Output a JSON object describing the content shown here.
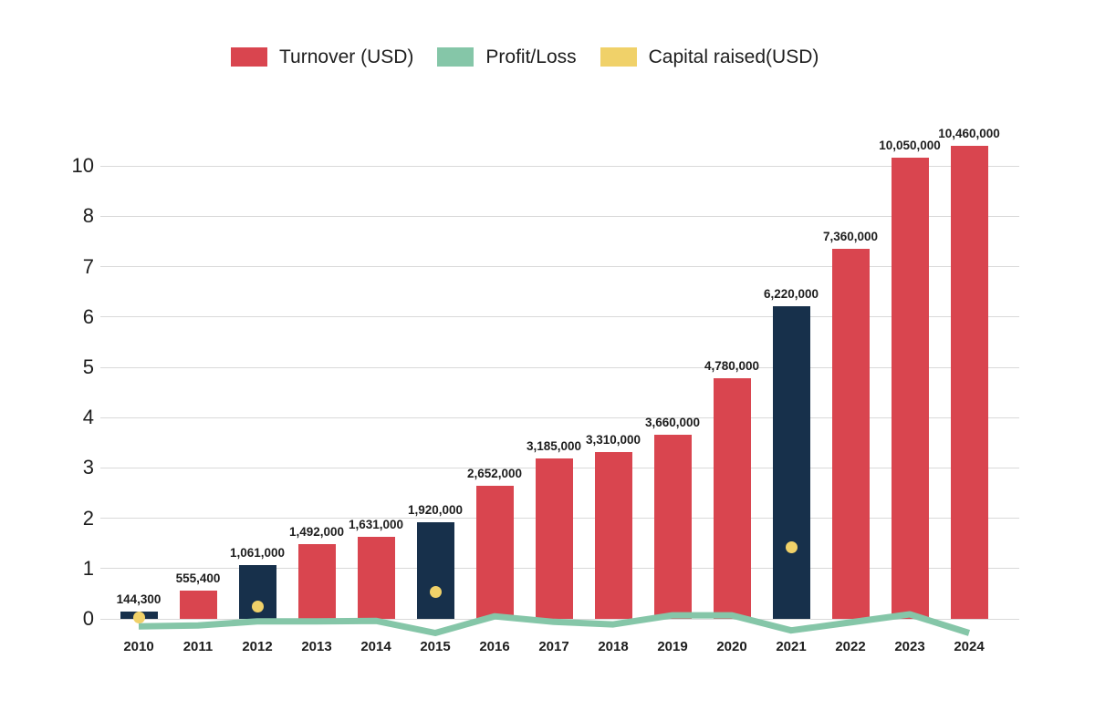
{
  "legend": {
    "items": [
      {
        "label": "Turnover (USD)",
        "color_key": "turnover"
      },
      {
        "label": "Profit/Loss",
        "color_key": "profit_loss"
      },
      {
        "label": "Capital raised(USD)",
        "color_key": "capital"
      }
    ]
  },
  "colors": {
    "turnover": "#D9454F",
    "highlight": "#17304B",
    "profit_loss": "#85C6A8",
    "capital": "#F0D169",
    "gridline": "#D9D9D9",
    "text": "#1D1D1D",
    "background": "#FFFFFF"
  },
  "chart_data": {
    "type": "bar",
    "title": "",
    "xlabel": "",
    "ylabel": "",
    "grid": true,
    "legend_position": "top",
    "categories": [
      "2010",
      "2011",
      "2012",
      "2013",
      "2014",
      "2015",
      "2016",
      "2017",
      "2018",
      "2019",
      "2020",
      "2021",
      "2022",
      "2023",
      "2024"
    ],
    "yticks": [
      "0",
      "1",
      "2",
      "3",
      "4",
      "5",
      "6",
      "7",
      "8",
      "10"
    ],
    "yaxis_note": "gridlines equally spaced; top line labeled 10 with 9 skipped; scale in millions USD",
    "series": [
      {
        "name": "Turnover (USD)",
        "type": "bar",
        "values": [
          144300,
          555400,
          1061000,
          1492000,
          1631000,
          1920000,
          2652000,
          3185000,
          3310000,
          3660000,
          4780000,
          6220000,
          7360000,
          10050000,
          10460000
        ],
        "labels": [
          "144,300",
          "555,400",
          "1,061,000",
          "1,492,000",
          "1,631,000",
          "1,920,000",
          "2,652,000",
          "3,185,000",
          "3,310,000",
          "3,660,000",
          "4,780,000",
          "6,220,000",
          "7,360,000",
          "10,050,000",
          "10,460,000"
        ],
        "highlight_categories": [
          "2010",
          "2012",
          "2015",
          "2021"
        ]
      },
      {
        "name": "Profit/Loss",
        "type": "line",
        "values_musd_estimated": [
          -0.15,
          -0.13,
          -0.05,
          -0.05,
          -0.04,
          -0.28,
          0.05,
          -0.06,
          -0.11,
          0.07,
          0.07,
          -0.23,
          -0.07,
          0.09,
          -0.28
        ]
      },
      {
        "name": "Capital raised(USD)",
        "type": "scatter",
        "points": [
          {
            "category": "2010",
            "value_musd_estimated": 0.03
          },
          {
            "category": "2012",
            "value_musd_estimated": 0.24
          },
          {
            "category": "2015",
            "value_musd_estimated": 0.54
          },
          {
            "category": "2021",
            "value_musd_estimated": 1.42
          }
        ]
      }
    ]
  }
}
